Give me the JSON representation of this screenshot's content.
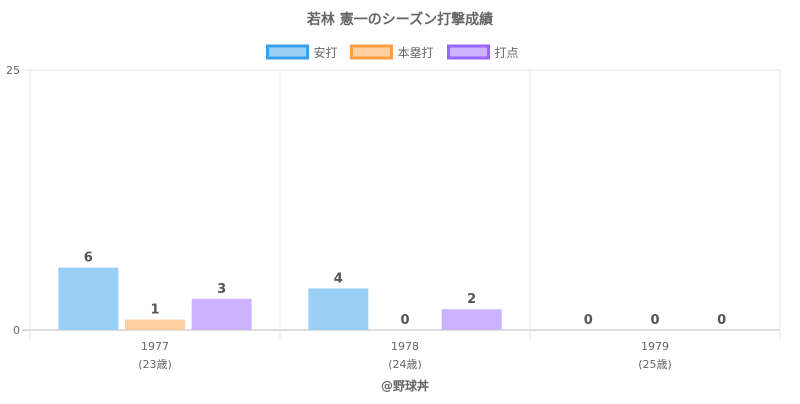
{
  "chart_data": {
    "type": "bar",
    "title": "若林 憲一のシーズン打撃成績",
    "categories": [
      "1977",
      "1978",
      "1979"
    ],
    "category_sublabels": [
      "(23歳)",
      "(24歳)",
      "(25歳)"
    ],
    "series": [
      {
        "name": "安打",
        "values": [
          6,
          4,
          0
        ],
        "fill": "#9ad0f5",
        "stroke": "#36a2eb"
      },
      {
        "name": "本塁打",
        "values": [
          1,
          0,
          0
        ],
        "fill": "#ffcf9f",
        "stroke": "#ff9f40"
      },
      {
        "name": "打点",
        "values": [
          3,
          2,
          0
        ],
        "fill": "#ccb2ff",
        "stroke": "#9966ff"
      }
    ],
    "ylim": [
      0,
      25
    ],
    "yticks": [
      "0",
      "25"
    ],
    "grid": true,
    "legend_position": "top-center",
    "data_labels": true
  },
  "footer": "@野球丼"
}
